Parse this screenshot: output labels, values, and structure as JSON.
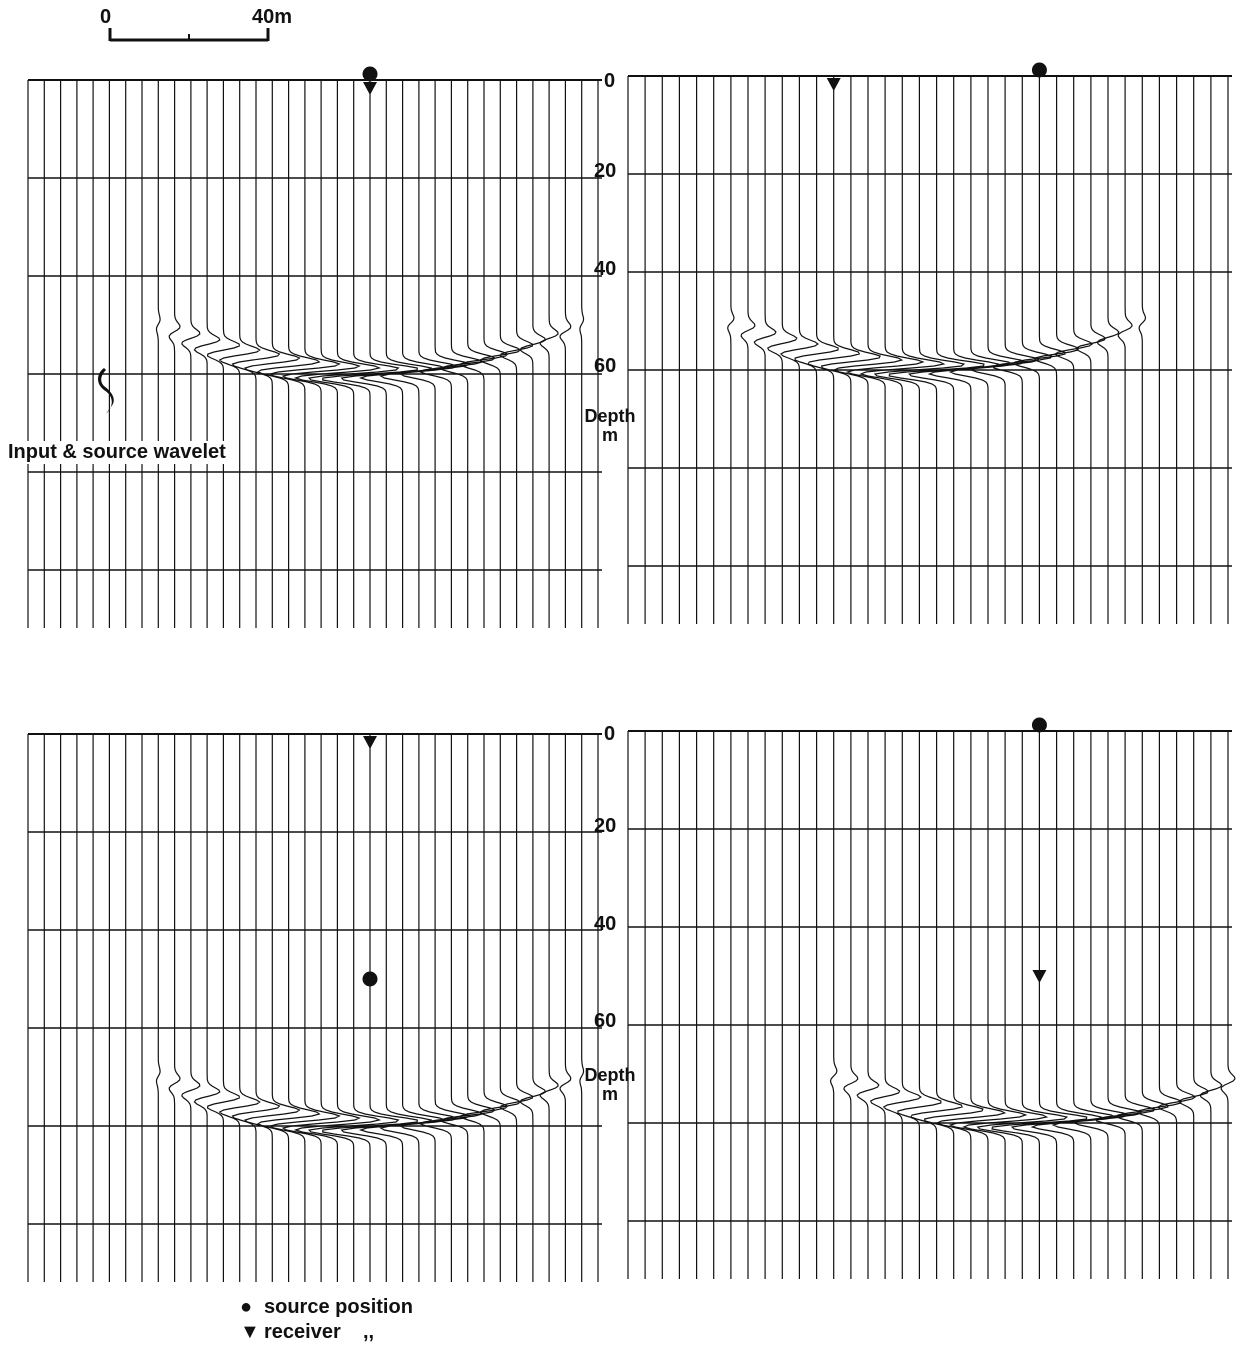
{
  "scale_bar": {
    "start_label": "0",
    "end_label": "40m"
  },
  "depth_axis": {
    "tick_labels": [
      "0",
      "20",
      "40",
      "60"
    ],
    "label_line1": "Depth",
    "label_line2": "m"
  },
  "wavelet_label": "Input & source wavelet",
  "legend": {
    "source_symbol": "●",
    "source_text": "source position",
    "receiver_symbol": "▼",
    "receiver_text": "receiver    ,,"
  },
  "colors": {
    "ink": "#111111",
    "background": "#ffffff"
  },
  "panels": [
    {
      "id": "top-left",
      "source_depth": 0,
      "receiver_depth": 0,
      "reflection_depth": 60,
      "source_trace": 21,
      "receiver_trace": 21
    },
    {
      "id": "top-right",
      "source_depth": 0,
      "receiver_depth": 0,
      "reflection_depth": 60,
      "source_trace": 24,
      "receiver_trace": 12
    },
    {
      "id": "bottom-left",
      "source_depth": 50,
      "receiver_depth": 0,
      "reflection_depth": 80,
      "source_trace": 21,
      "receiver_trace": 21
    },
    {
      "id": "bottom-right",
      "source_depth": 0,
      "receiver_depth": 50,
      "reflection_depth": 80,
      "source_trace": 24,
      "receiver_trace": 24
    }
  ]
}
